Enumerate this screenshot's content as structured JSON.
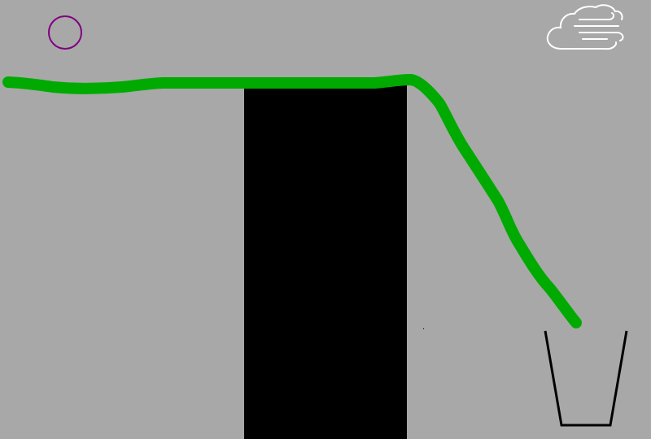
{
  "scene": {
    "background_color": "#a8a8a8",
    "ball": {
      "shape": "circle",
      "color": "#800080"
    },
    "drawn_line": {
      "color": "#00aa00"
    },
    "wall": {
      "color": "#000000"
    },
    "cup": {
      "color": "#000000"
    },
    "wind_icon": {
      "name": "wind-cloud-icon",
      "color": "#ffffff"
    }
  }
}
